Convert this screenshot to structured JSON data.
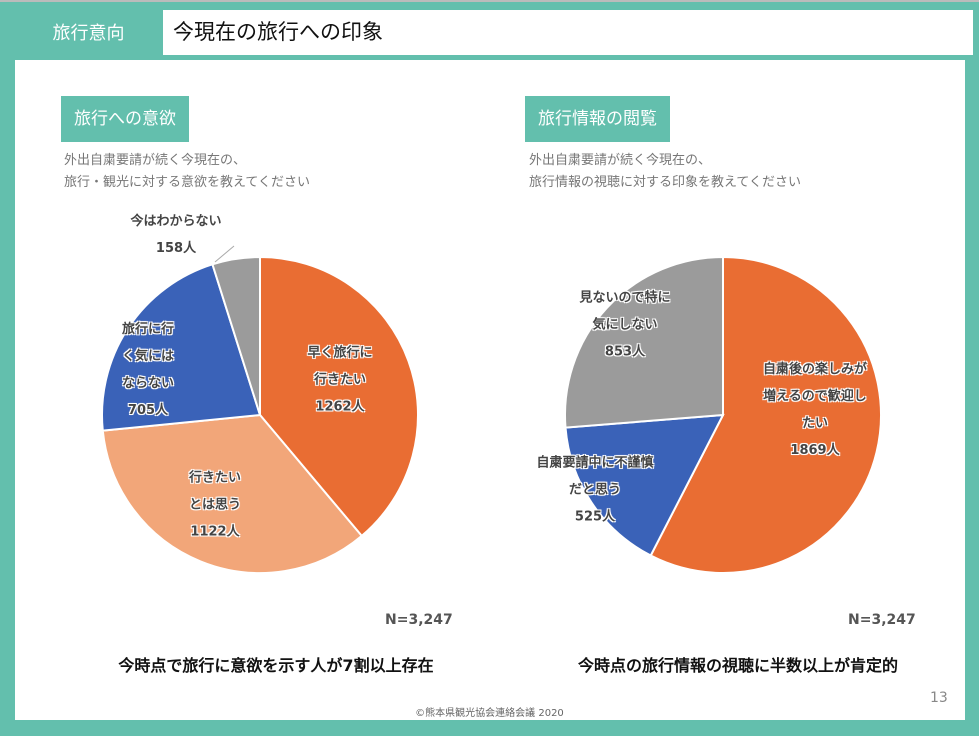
{
  "header": {
    "section": "旅行意向",
    "title": "今現在の旅行への印象"
  },
  "chart_data": [
    {
      "type": "pie",
      "title": "旅行への意欲",
      "question": [
        "外出自粛要請が続く今現在の、",
        "旅行・観光に対する意欲を教えてください"
      ],
      "slices": [
        {
          "label": [
            "早く旅行に",
            "行きたい"
          ],
          "value": 1262,
          "value_label": "1262人",
          "color": "#E96D33"
        },
        {
          "label": [
            "行きたい",
            "とは思う"
          ],
          "value": 1122,
          "value_label": "1122人",
          "color": "#F2A679"
        },
        {
          "label": [
            "旅行に行",
            "く気には",
            "ならない"
          ],
          "value": 705,
          "value_label": "705人",
          "color": "#3A62B8"
        },
        {
          "label": [
            "今はわからない"
          ],
          "value": 158,
          "value_label": "158人",
          "color": "#9B9B9B"
        }
      ],
      "n": "N=3,247",
      "conclusion": "今時点で旅行に意欲を示す人が7割以上存在"
    },
    {
      "type": "pie",
      "title": "旅行情報の閲覧",
      "question": [
        "外出自粛要請が続く今現在の、",
        "旅行情報の視聴に対する印象を教えてください"
      ],
      "slices": [
        {
          "label": [
            "自粛後の楽しみが",
            "増えるので歓迎し",
            "たい"
          ],
          "value": 1869,
          "value_label": "1869人",
          "color": "#E96D33"
        },
        {
          "label": [
            "自粛要請中に不謹慎",
            "だと思う"
          ],
          "value": 525,
          "value_label": "525人",
          "color": "#3A62B8"
        },
        {
          "label": [
            "見ないので特に",
            "気にしない"
          ],
          "value": 853,
          "value_label": "853人",
          "color": "#9B9B9B"
        }
      ],
      "n": "N=3,247",
      "conclusion": "今時点の旅行情報の視聴に半数以上が肯定的"
    }
  ],
  "footer": {
    "copyright": "©熊本県観光協会連絡会議 2020",
    "page": "13"
  }
}
